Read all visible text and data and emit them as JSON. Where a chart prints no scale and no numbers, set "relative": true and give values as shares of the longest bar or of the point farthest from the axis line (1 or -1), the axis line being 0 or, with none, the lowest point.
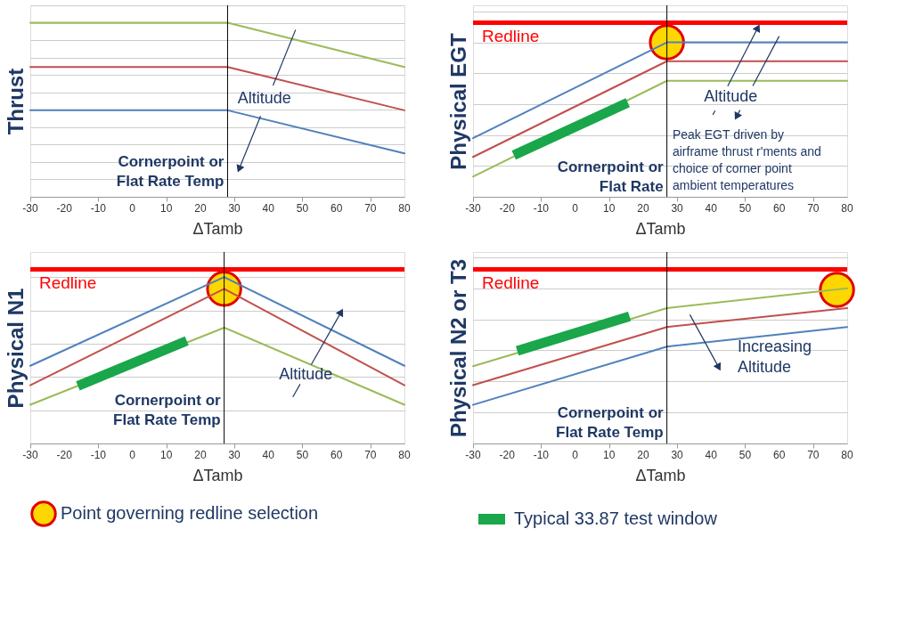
{
  "chart_data": [
    {
      "type": "line",
      "relative": true,
      "ylabel": "Thrust",
      "xlabel": "ΔTamb",
      "xlim": [
        -30,
        80
      ],
      "xticks": [
        -30,
        -20,
        -10,
        0,
        10,
        20,
        30,
        40,
        50,
        60,
        70,
        80
      ],
      "grid": "y",
      "legend": false,
      "series": [
        {
          "color": "#9bbb59",
          "x": [
            -30,
            28,
            80
          ],
          "values": [
            1,
            1,
            0.746
          ]
        },
        {
          "color": "#c0504d",
          "x": [
            -30,
            28,
            80
          ],
          "values": [
            0.746,
            0.746,
            0.497
          ]
        },
        {
          "color": "#4f81bd",
          "x": [
            -30,
            28,
            80
          ],
          "values": [
            0.497,
            0.497,
            0.249
          ]
        }
      ],
      "ref_lines": [
        {
          "axis": "x",
          "value": 28,
          "label": "Cornerpoint or\nFlat Rate Temp",
          "color": "#000000"
        }
      ],
      "annotations": [
        "Altitude"
      ]
    },
    {
      "type": "line",
      "relative": true,
      "ylabel": "Physical EGT",
      "xlabel": "ΔTamb",
      "xlim": [
        -30,
        80
      ],
      "xticks": [
        -30,
        -20,
        -10,
        0,
        10,
        20,
        30,
        40,
        50,
        60,
        70,
        80
      ],
      "grid": "y",
      "legend": false,
      "series": [
        {
          "color": "#4f81bd",
          "x": [
            -30,
            27,
            80
          ],
          "values": [
            0.38,
            1,
            1
          ]
        },
        {
          "color": "#c0504d",
          "x": [
            -30,
            27,
            80
          ],
          "values": [
            0.258,
            0.878,
            0.878
          ]
        },
        {
          "color": "#9bbb59",
          "x": [
            -30,
            27,
            80
          ],
          "values": [
            0.131,
            0.751,
            0.751
          ]
        },
        {
          "type": "line",
          "color": "#1aa64a",
          "x": [
            -18,
            15.5
          ],
          "values": [
            0.27,
            0.61
          ]
        },
        {
          "type": "scatter",
          "marker": "circle",
          "color": "#ffd700",
          "x": [
            27
          ],
          "values": [
            1
          ]
        }
      ],
      "ref_lines": [
        {
          "axis": "y",
          "value": 1.127,
          "label": "Redline",
          "color": "#ff0000"
        },
        {
          "axis": "x",
          "value": 27,
          "label": "Cornerpoint or\nFlat Rate",
          "color": "#000000"
        }
      ],
      "annotations": [
        "Altitude",
        "Peak EGT driven by\nairframe thrust r'ments and\nchoice of corner point\nambient temperatures"
      ]
    },
    {
      "type": "line",
      "relative": true,
      "ylabel": "Physical N1",
      "xlabel": "ΔTamb",
      "xlim": [
        -30,
        80
      ],
      "xticks": [
        -30,
        -20,
        -10,
        0,
        10,
        20,
        30,
        40,
        50,
        60,
        70,
        80
      ],
      "grid": "y",
      "legend": "bottom",
      "series": [
        {
          "color": "#4f81bd",
          "x": [
            -30,
            27,
            80
          ],
          "values": [
            0.467,
            1,
            0.467
          ]
        },
        {
          "color": "#c0504d",
          "x": [
            -30,
            27,
            80
          ],
          "values": [
            0.35,
            0.929,
            0.35
          ]
        },
        {
          "color": "#9bbb59",
          "x": [
            -30,
            27,
            80
          ],
          "values": [
            0.233,
            0.696,
            0.233
          ]
        },
        {
          "type": "line",
          "color": "#1aa64a",
          "x": [
            -16,
            16
          ],
          "values": [
            0.346,
            0.617
          ]
        },
        {
          "type": "scatter",
          "marker": "circle",
          "name": "Point governing redline selection",
          "color": "#ffd700",
          "x": [
            27
          ],
          "values": [
            0.93
          ]
        }
      ],
      "ref_lines": [
        {
          "axis": "y",
          "value": 1.046,
          "label": "Redline",
          "color": "#ff0000"
        },
        {
          "axis": "x",
          "value": 27,
          "label": "Cornerpoint or\nFlat Rate Temp",
          "color": "#000000"
        }
      ],
      "annotations": [
        "Altitude"
      ]
    },
    {
      "type": "line",
      "relative": true,
      "ylabel": "Physical N2 or T3",
      "xlabel": "ΔTamb",
      "xlim": [
        -30,
        80
      ],
      "xticks": [
        -30,
        -20,
        -10,
        0,
        10,
        20,
        30,
        40,
        50,
        60,
        70,
        80
      ],
      "grid": "y",
      "legend": "bottom",
      "series": [
        {
          "color": "#9bbb59",
          "x": [
            -30,
            27,
            80
          ],
          "values": [
            0.498,
            0.873,
            1
          ]
        },
        {
          "color": "#c0504d",
          "x": [
            -30,
            27,
            80
          ],
          "values": [
            0.376,
            0.751,
            0.873
          ]
        },
        {
          "color": "#4f81bd",
          "x": [
            -30,
            27,
            80
          ],
          "values": [
            0.249,
            0.624,
            0.751
          ]
        },
        {
          "type": "line",
          "name": "Typical 33.87 test window",
          "color": "#1aa64a",
          "x": [
            -17,
            16
          ],
          "values": [
            0.597,
            0.819
          ]
        },
        {
          "type": "scatter",
          "marker": "circle",
          "color": "#ffd700",
          "x": [
            77
          ],
          "values": [
            0.99
          ]
        }
      ],
      "ref_lines": [
        {
          "axis": "y",
          "value": 1.122,
          "label": "Redline",
          "color": "#ff0000"
        },
        {
          "axis": "x",
          "value": 27,
          "label": "Cornerpoint or\nFlat Rate Temp",
          "color": "#000000"
        }
      ],
      "annotations": [
        "Increasing\nAltitude"
      ]
    }
  ]
}
